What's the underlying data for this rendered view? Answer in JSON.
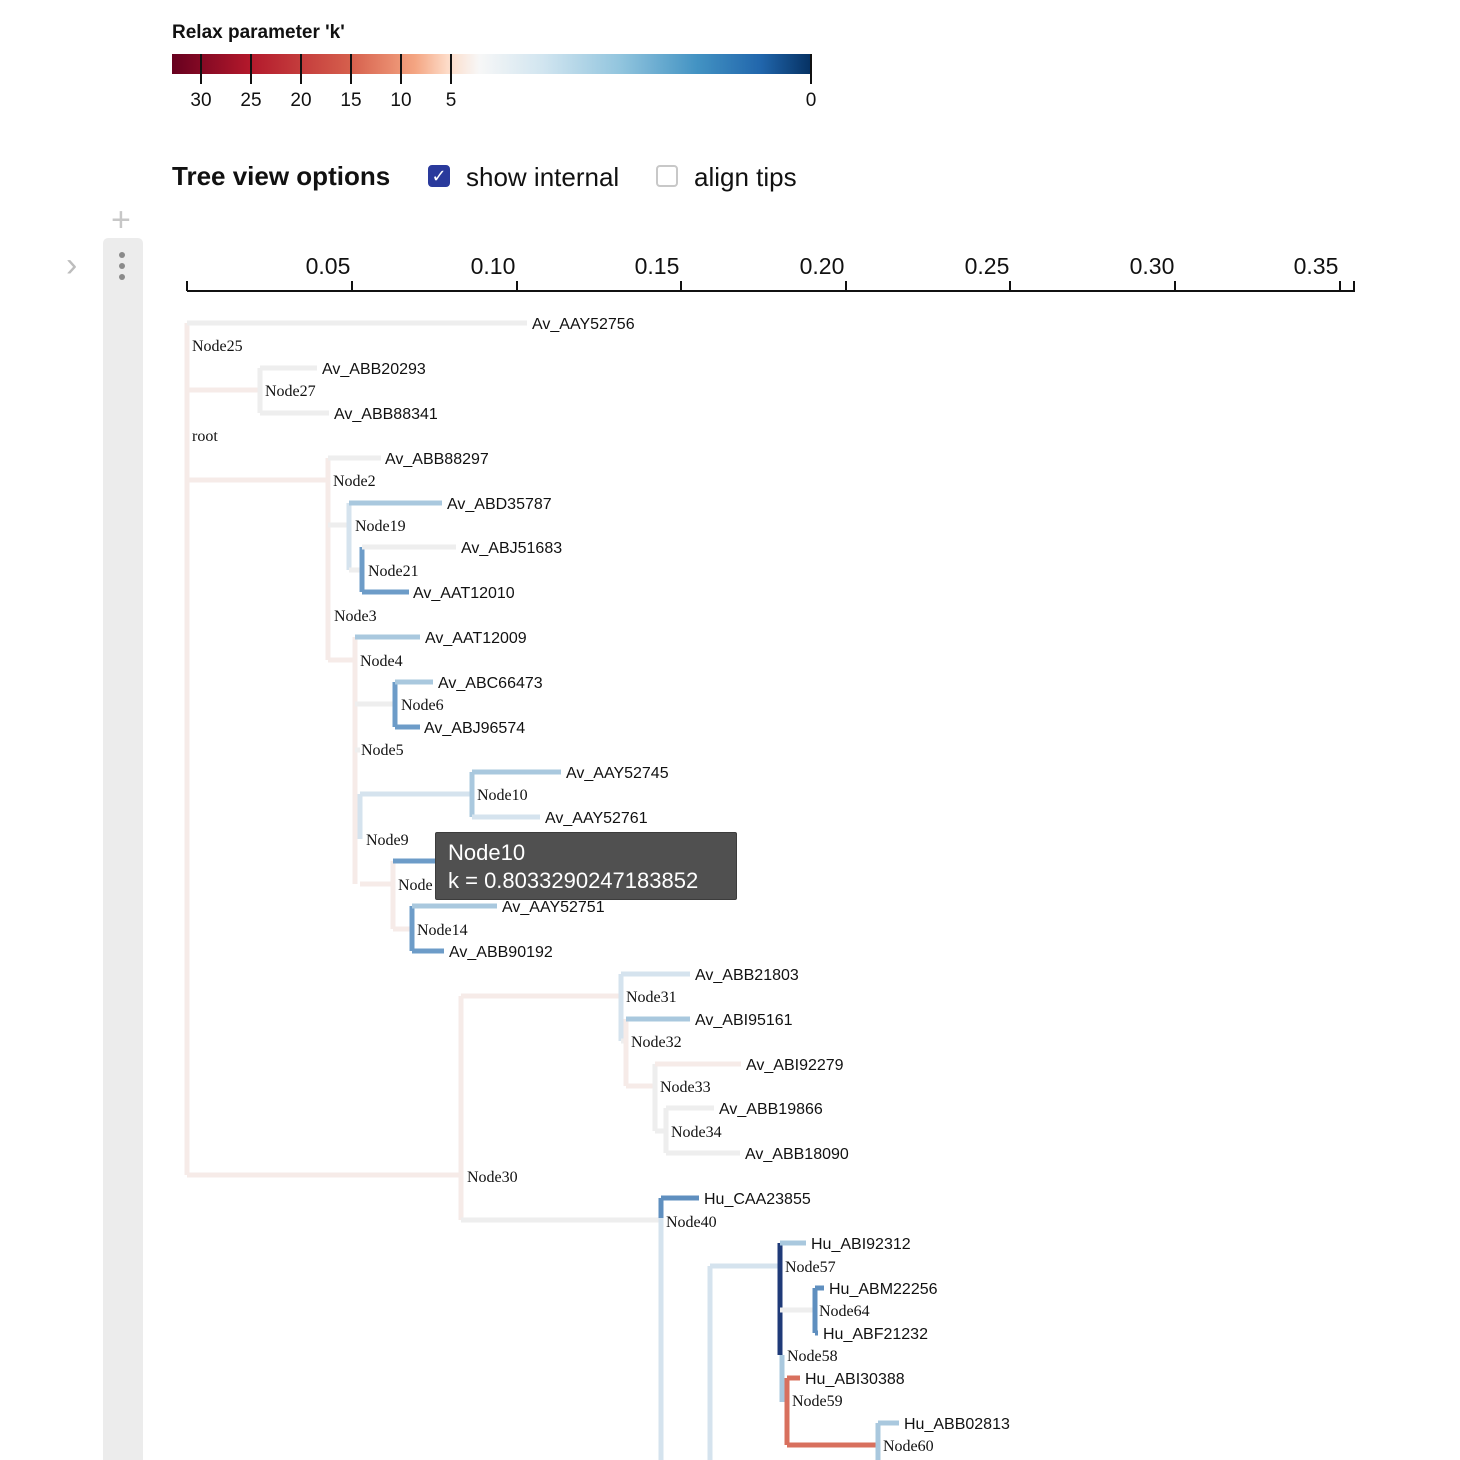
{
  "legend": {
    "title": "Relax parameter 'k'",
    "ticks": [
      "30",
      "25",
      "20",
      "15",
      "10",
      "5",
      "0"
    ]
  },
  "options": {
    "title": "Tree view options",
    "show_internal": {
      "label": "show internal",
      "checked": true
    },
    "align_tips": {
      "label": "align tips",
      "checked": false
    }
  },
  "axis": {
    "ticks": [
      "0.05",
      "0.10",
      "0.15",
      "0.20",
      "0.25",
      "0.30",
      "0.35"
    ]
  },
  "colors": {
    "very_light_gray": "#eeeeee",
    "light_pink": "#f6ebe8",
    "pale_blue": "#d5e3ee",
    "light_blue": "#a9c8de",
    "mid_blue": "#6d9cc8",
    "steel_blue": "#5f8fbf",
    "dark_navy": "#1f3a78",
    "salmon": "#d8705e"
  },
  "tree": {
    "leaves": [
      "Av_AAY52756",
      "Av_ABB20293",
      "Av_ABB88341",
      "Av_ABB88297",
      "Av_ABD35787",
      "Av_ABJ51683",
      "Av_AAT12010",
      "Av_AAT12009",
      "Av_ABC66473",
      "Av_ABJ96574",
      "Av_AAY52745",
      "Av_AAY52761",
      "Av_AAY52751",
      "Av_ABB90192",
      "Av_ABB21803",
      "Av_ABI95161",
      "Av_ABI92279",
      "Av_ABB19866",
      "Av_ABB18090",
      "Hu_CAA23855",
      "Hu_ABI92312",
      "Hu_ABM22256",
      "Hu_ABF21232",
      "Hu_ABI30388",
      "Hu_ABB02813"
    ],
    "internal_nodes": [
      "Node25",
      "Node27",
      "root",
      "Node2",
      "Node19",
      "Node21",
      "Node3",
      "Node4",
      "Node6",
      "Node5",
      "Node10",
      "Node9",
      "Node",
      "Node14",
      "Node31",
      "Node32",
      "Node33",
      "Node34",
      "Node30",
      "Node40",
      "Node57",
      "Node64",
      "Node58",
      "Node59",
      "Node60"
    ]
  },
  "tooltip": {
    "title": "Node10",
    "value": "k = 0.8033290247183852"
  }
}
